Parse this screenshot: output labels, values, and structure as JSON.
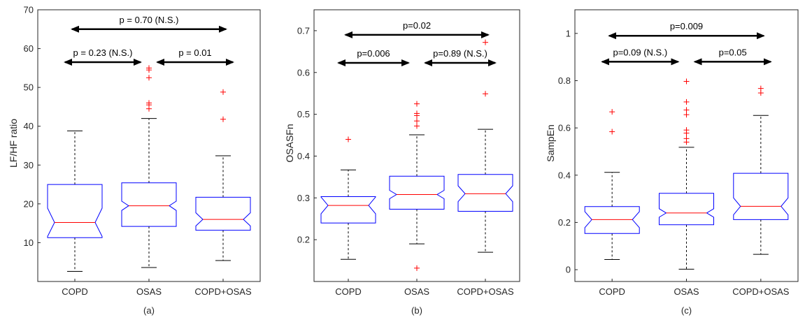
{
  "chart_data": [
    {
      "type": "boxplot",
      "panel_label": "(a)",
      "ylabel": "LF/HF ratio",
      "ylim": [
        0,
        70
      ],
      "yticks": [
        10,
        20,
        30,
        40,
        50,
        60,
        70
      ],
      "categories": [
        "COPD",
        "OSAS",
        "COPD+OSAS"
      ],
      "boxes": [
        {
          "whisker_low": 2.6,
          "q1": 11.3,
          "median": 15.2,
          "q3": 25.0,
          "whisker_high": 38.8,
          "notch_low": 11.6,
          "notch_high": 18.9,
          "outliers": []
        },
        {
          "whisker_low": 3.6,
          "q1": 14.2,
          "median": 19.5,
          "q3": 25.4,
          "whisker_high": 42.0,
          "notch_low": 18.3,
          "notch_high": 20.7,
          "outliers": [
            44.5,
            45.5,
            46.0,
            52.5,
            54.5,
            55.0
          ]
        },
        {
          "whisker_low": 5.4,
          "q1": 13.2,
          "median": 16.0,
          "q3": 21.7,
          "whisker_high": 32.4,
          "notch_low": 14.3,
          "notch_high": 17.7,
          "outliers": [
            41.8,
            48.8
          ]
        }
      ],
      "annotations": [
        {
          "from": 0,
          "to": 2,
          "y": 65.0,
          "text": "p = 0.70 (N.S.)"
        },
        {
          "from": 0,
          "to": 1,
          "y": 56.5,
          "text": "p = 0.23 (N.S.)"
        },
        {
          "from": 1,
          "to": 2,
          "y": 56.5,
          "text": "p = 0.01"
        }
      ]
    },
    {
      "type": "boxplot",
      "panel_label": "(b)",
      "ylabel": "OSASFn",
      "ylim": [
        0.1,
        0.75
      ],
      "yticks": [
        0.2,
        0.3,
        0.4,
        0.5,
        0.6,
        0.7
      ],
      "categories": [
        "COPD",
        "OSAS",
        "COPD+OSAS"
      ],
      "boxes": [
        {
          "whisker_low": 0.153,
          "q1": 0.24,
          "median": 0.282,
          "q3": 0.303,
          "whisker_high": 0.367,
          "notch_low": 0.262,
          "notch_high": 0.302,
          "outliers": [
            0.44
          ]
        },
        {
          "whisker_low": 0.19,
          "q1": 0.273,
          "median": 0.308,
          "q3": 0.352,
          "whisker_high": 0.451,
          "notch_low": 0.298,
          "notch_high": 0.318,
          "outliers": [
            0.132,
            0.472,
            0.484,
            0.497,
            0.502,
            0.525
          ]
        },
        {
          "whisker_low": 0.17,
          "q1": 0.268,
          "median": 0.31,
          "q3": 0.356,
          "whisker_high": 0.464,
          "notch_low": 0.291,
          "notch_high": 0.329,
          "outliers": [
            0.549,
            0.672
          ]
        }
      ],
      "annotations": [
        {
          "from": 0,
          "to": 2,
          "y": 0.69,
          "text": "p=0.02"
        },
        {
          "from": 0,
          "to": 1,
          "y": 0.623,
          "text": "p=0.006"
        },
        {
          "from": 1,
          "to": 2,
          "y": 0.623,
          "text": "p=0.89 (N.S.)"
        }
      ]
    },
    {
      "type": "boxplot",
      "panel_label": "(c)",
      "ylabel": "SampEn",
      "ylim": [
        -0.05,
        1.1
      ],
      "yticks": [
        0,
        0.2,
        0.4,
        0.6,
        0.8,
        1
      ],
      "categories": [
        "COPD",
        "OSAS",
        "COPD+OSAS"
      ],
      "boxes": [
        {
          "whisker_low": 0.043,
          "q1": 0.153,
          "median": 0.212,
          "q3": 0.267,
          "whisker_high": 0.412,
          "notch_low": 0.178,
          "notch_high": 0.246,
          "outliers": [
            0.584,
            0.668
          ]
        },
        {
          "whisker_low": 0.002,
          "q1": 0.19,
          "median": 0.24,
          "q3": 0.323,
          "whisker_high": 0.518,
          "notch_low": 0.222,
          "notch_high": 0.258,
          "outliers": [
            0.54,
            0.555,
            0.578,
            0.591,
            0.656,
            0.676,
            0.71,
            0.797
          ]
        },
        {
          "whisker_low": 0.065,
          "q1": 0.212,
          "median": 0.268,
          "q3": 0.408,
          "whisker_high": 0.653,
          "notch_low": 0.232,
          "notch_high": 0.304,
          "outliers": [
            0.748,
            0.767
          ]
        }
      ],
      "annotations": [
        {
          "from": 0,
          "to": 2,
          "y": 0.99,
          "text": "p=0.009"
        },
        {
          "from": 0,
          "to": 1,
          "y": 0.88,
          "text": "p=0.09 (N.S.)"
        },
        {
          "from": 1,
          "to": 2,
          "y": 0.88,
          "text": "p=0.05"
        }
      ]
    }
  ],
  "colors": {
    "box": "#0000ff",
    "median": "#ff0000",
    "outlier": "#ff0000",
    "whisker": "#000000",
    "axis": "#262626"
  }
}
